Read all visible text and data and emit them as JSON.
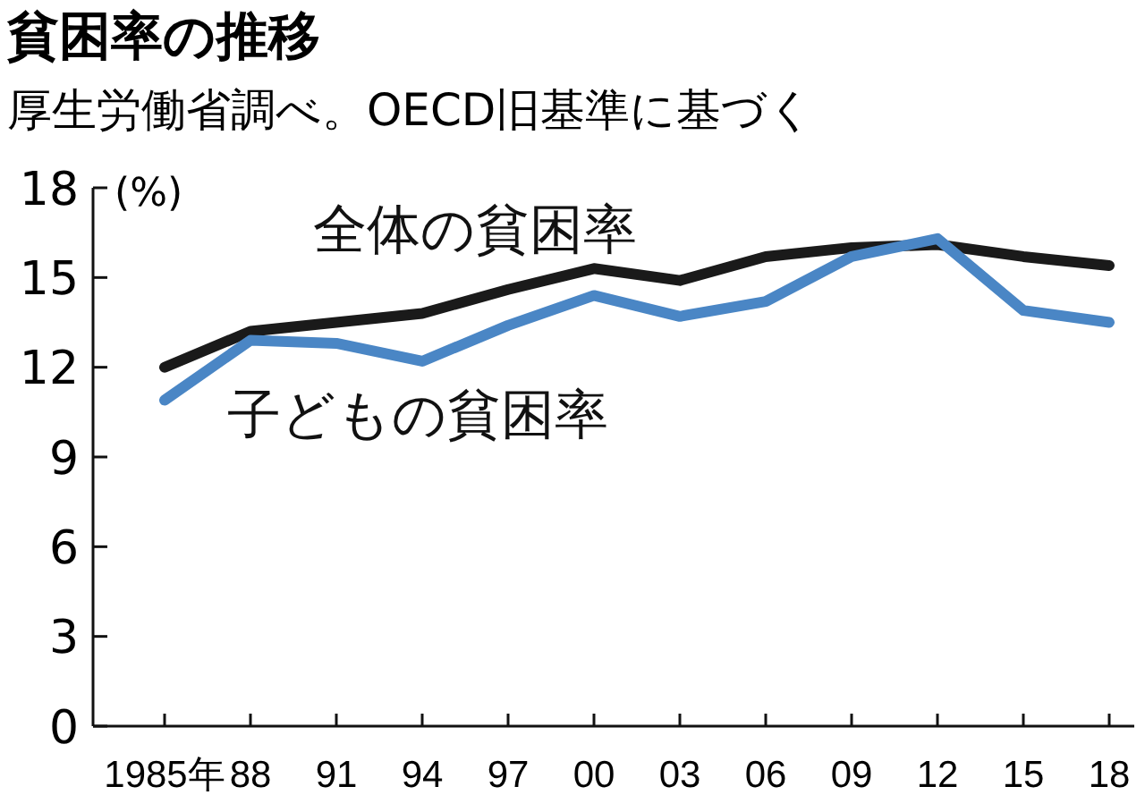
{
  "chart_data": {
    "type": "line",
    "title": "貧困率の推移",
    "subtitle": "厚生労働省調べ。OECD旧基準に基づく",
    "ylabel": "(%)",
    "categories": [
      "1985年",
      "88",
      "91",
      "94",
      "97",
      "00",
      "03",
      "06",
      "09",
      "12",
      "15",
      "18"
    ],
    "series": [
      {
        "name": "全体の貧困率",
        "color": "#1a1a1a",
        "values": [
          12.0,
          13.2,
          13.5,
          13.8,
          14.6,
          15.3,
          14.9,
          15.7,
          16.0,
          16.1,
          15.7,
          15.4
        ]
      },
      {
        "name": "子どもの貧困率",
        "color": "#4a86c5",
        "values": [
          10.9,
          12.9,
          12.8,
          12.2,
          13.4,
          14.4,
          13.7,
          14.2,
          15.7,
          16.3,
          13.9,
          13.5
        ]
      }
    ],
    "ylim": [
      0,
      18
    ],
    "yticks": [
      0,
      3,
      6,
      9,
      12,
      15,
      18
    ],
    "grid": false,
    "legend": false,
    "marker": "none",
    "line_style": "solid"
  }
}
